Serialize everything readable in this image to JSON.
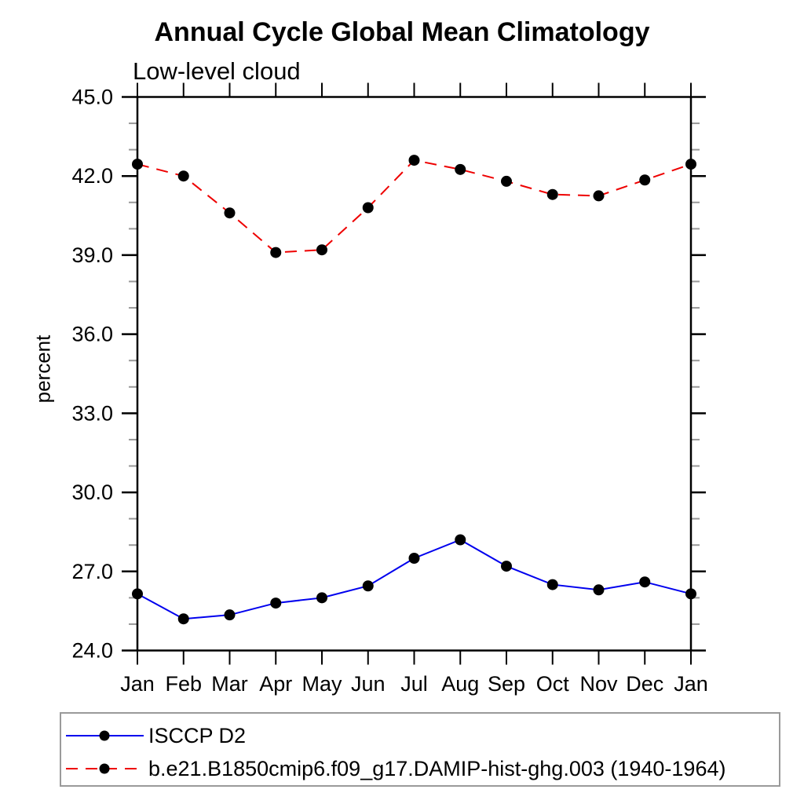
{
  "title": "Annual Cycle Global Mean Climatology",
  "subtitle": "Low-level cloud",
  "chart_data": {
    "type": "line",
    "categories": [
      "Jan",
      "Feb",
      "Mar",
      "Apr",
      "May",
      "Jun",
      "Jul",
      "Aug",
      "Sep",
      "Oct",
      "Nov",
      "Dec",
      "Jan"
    ],
    "xlabel": "",
    "ylabel": "percent",
    "ylim": [
      24.0,
      45.0
    ],
    "ytick_major_values": [
      24,
      27,
      30,
      33,
      36,
      39,
      42,
      45
    ],
    "ytick_labels": [
      "24.0",
      "27.0",
      "30.0",
      "33.0",
      "36.0",
      "39.0",
      "42.0",
      "45.0"
    ],
    "ytick_minor_step": 1.0,
    "grid": false,
    "legend_position": "bottom-left boxed",
    "series": [
      {
        "name": "ISCCP D2",
        "color": "#0000ee",
        "line_style": "solid",
        "marker": "filled-circle",
        "marker_color": "#000000",
        "values": [
          26.15,
          25.2,
          25.35,
          25.8,
          26.0,
          26.45,
          27.5,
          28.2,
          27.2,
          26.5,
          26.3,
          26.6,
          26.15
        ]
      },
      {
        "name": "b.e21.B1850cmip6.f09_g17.DAMIP-hist-ghg.003 (1940-1964)",
        "color": "#ee0000",
        "line_style": "dashed",
        "marker": "filled-circle",
        "marker_color": "#000000",
        "values": [
          42.45,
          42.0,
          40.6,
          39.1,
          39.2,
          40.8,
          42.6,
          42.25,
          41.8,
          41.3,
          41.25,
          41.85,
          42.45
        ]
      }
    ],
    "axis_color": "#000000",
    "minor_tick_color": "#999999"
  }
}
